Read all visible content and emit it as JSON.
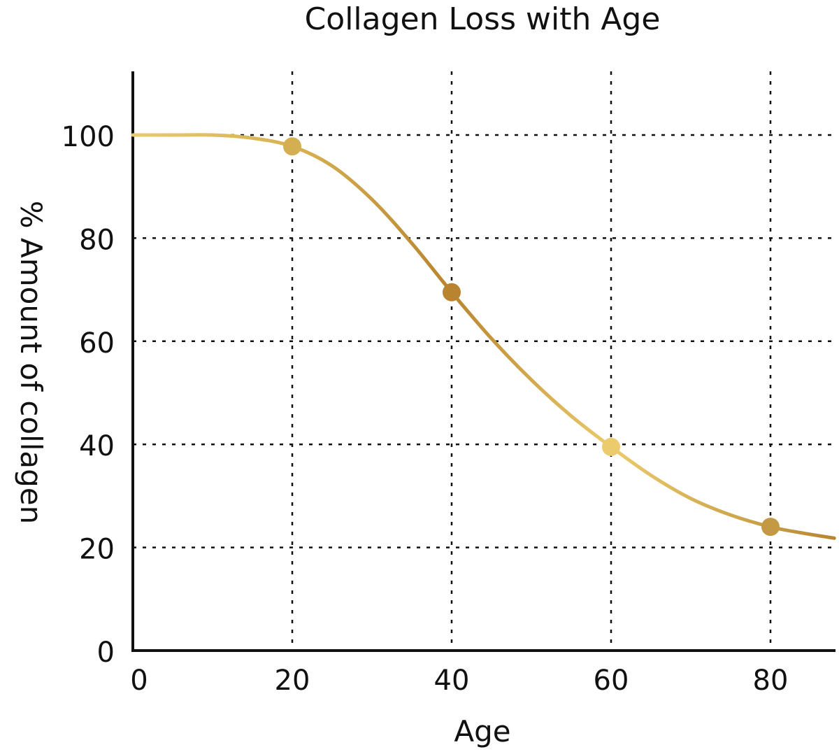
{
  "chart_data": {
    "type": "line",
    "title": "Collagen Loss with Age",
    "xlabel": "Age",
    "ylabel": "% Amount of collagen",
    "xlim": [
      0,
      88
    ],
    "ylim": [
      0,
      112
    ],
    "x_ticks": [
      0,
      20,
      40,
      60,
      80
    ],
    "y_ticks": [
      0,
      20,
      40,
      60,
      80,
      100
    ],
    "grid": true,
    "series": [
      {
        "curve": [
          [
            0,
            100
          ],
          [
            5,
            100
          ],
          [
            10,
            100
          ],
          [
            15,
            99.4
          ],
          [
            20,
            97.8
          ],
          [
            25,
            94
          ],
          [
            30,
            87.5
          ],
          [
            35,
            79
          ],
          [
            40,
            69.5
          ],
          [
            45,
            60.5
          ],
          [
            50,
            52.5
          ],
          [
            55,
            45.5
          ],
          [
            60,
            39.5
          ],
          [
            65,
            34
          ],
          [
            70,
            29.5
          ],
          [
            75,
            26.3
          ],
          [
            80,
            24
          ],
          [
            84,
            22.8
          ],
          [
            88,
            21.8
          ]
        ],
        "points": [
          [
            20,
            97.8
          ],
          [
            40,
            69.5
          ],
          [
            60,
            39.5
          ],
          [
            80,
            24
          ]
        ]
      }
    ],
    "colors": {
      "light_gold": "#E9CB6B",
      "mid_gold": "#D4AF52",
      "dark_gold": "#B9842F",
      "axis": "#111111"
    },
    "point_colors": [
      "#D4AF52",
      "#B9842F",
      "#EBCB6C",
      "#C39A43"
    ]
  }
}
